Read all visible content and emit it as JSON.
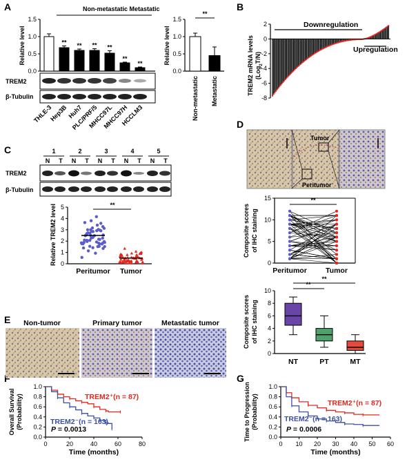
{
  "panel_labels": {
    "A": "A",
    "B": "B",
    "C": "C",
    "D": "D",
    "E": "E",
    "F": "F",
    "G": "G"
  },
  "panelA": {
    "group_label": "Non-metastatic Metastatic",
    "blot_labels": [
      "TREM2",
      "β-Tubulin"
    ],
    "sig": "**",
    "chart_data": [
      {
        "type": "bar",
        "ylabel": "Relative level",
        "ylim": [
          0,
          1.5
        ],
        "yticks": [
          "0.0",
          "0.5",
          "1.0",
          "1.5"
        ],
        "categories": [
          "THLE-3",
          "Hep3B",
          "Huh7",
          "PLC/PRF/5",
          "MHCC97L",
          "MHCC97H",
          "HCCLM3"
        ],
        "values": [
          1.0,
          0.68,
          0.6,
          0.6,
          0.52,
          0.24,
          0.1
        ],
        "errors": [
          0.08,
          0.05,
          0.04,
          0.05,
          0.07,
          0.02,
          0.02
        ],
        "significance": [
          "",
          "**",
          "**",
          "**",
          "**",
          "**",
          "**"
        ]
      },
      {
        "type": "bar",
        "ylabel": "Relative level",
        "ylim": [
          0,
          1.5
        ],
        "yticks": [
          "0.0",
          "0.5",
          "1.0",
          "1.5"
        ],
        "categories": [
          "Non-metastatic",
          "Metastatic"
        ],
        "values": [
          1.0,
          0.45
        ],
        "errors": [
          0.1,
          0.25
        ],
        "significance": "**"
      }
    ]
  },
  "panelB": {
    "ylabel_line1": "TREM2 mRNA levels",
    "ylabel_line2": "(Log",
    "ylabel_sub": "2",
    "ylabel_end": "T/N)",
    "annotation_down": "Downregulation",
    "annotation_up": "Upregulation",
    "chart_data": {
      "type": "bar",
      "ylim": [
        -8,
        2
      ],
      "yticks": [
        "-8",
        "-6",
        "-4",
        "-2",
        "0",
        "2"
      ],
      "n_samples": 100,
      "min_value": -7.8,
      "max_value": 1.8,
      "n_downregulated": 78,
      "n_upregulated": 22
    }
  },
  "panelC": {
    "lanes": [
      "1",
      "2",
      "3",
      "4",
      "5"
    ],
    "lane_letters": [
      "N",
      "T",
      "N",
      "T",
      "N",
      "T",
      "N",
      "T",
      "N",
      "T"
    ],
    "blot_labels": [
      "TREM2",
      "β-Tubulin"
    ],
    "sig": "**",
    "chart_data": {
      "type": "scatter",
      "ylabel": "Relative TREM2 level",
      "ylim": [
        0,
        5
      ],
      "yticks": [
        "0",
        "1",
        "2",
        "3",
        "4",
        "5"
      ],
      "categories": [
        "Peritumor",
        "Tumor"
      ],
      "means": [
        2.5,
        0.5
      ]
    }
  },
  "panelD": {
    "image_labels": [
      "Tumor",
      "Peritumor"
    ],
    "sig": "**",
    "chart_data": [
      {
        "type": "line",
        "ylabel": "Composite scores of IHC staining",
        "ylim": [
          0,
          15
        ],
        "yticks": [
          "0",
          "5",
          "10",
          "15"
        ],
        "categories": [
          "Peritumor",
          "Tumor"
        ]
      },
      {
        "type": "box",
        "ylabel": "Composite scores of IHC staining",
        "ylim": [
          0,
          10
        ],
        "yticks": [
          "0",
          "2",
          "4",
          "6",
          "8",
          "10"
        ],
        "categories": [
          "NT",
          "PT",
          "MT"
        ],
        "boxes": [
          {
            "min": 3,
            "q1": 4.5,
            "median": 6,
            "q3": 8,
            "max": 9
          },
          {
            "min": 1,
            "q1": 2,
            "median": 3,
            "q3": 4,
            "max": 6
          },
          {
            "min": 0,
            "q1": 0.5,
            "median": 1,
            "q3": 2,
            "max": 3
          }
        ],
        "significance": [
          "**",
          "**"
        ]
      }
    ]
  },
  "panelE": {
    "labels": [
      "Non-tumor",
      "Primary tumor",
      "Metastatic tumor"
    ]
  },
  "panelF": {
    "chart_data": {
      "type": "line",
      "ylabel": "Overall Survival (Probability)",
      "xlabel": "Time (months)",
      "xlim": [
        0,
        80
      ],
      "ylim": [
        0,
        1
      ],
      "xticks": [
        "0",
        "20",
        "40",
        "60",
        "80"
      ],
      "yticks": [
        "0.0",
        "0.2",
        "0.4",
        "0.6",
        "0.8",
        "1.0"
      ],
      "series": [
        {
          "name": "TREM2⁺(n = 87)",
          "color": "#e8241c",
          "points": [
            [
              0,
              1
            ],
            [
              5,
              0.93
            ],
            [
              10,
              0.85
            ],
            [
              15,
              0.8
            ],
            [
              20,
              0.76
            ],
            [
              25,
              0.72
            ],
            [
              30,
              0.69
            ],
            [
              35,
              0.66
            ],
            [
              40,
              0.6
            ],
            [
              45,
              0.55
            ],
            [
              50,
              0.52
            ],
            [
              52,
              0.5
            ],
            [
              62,
              0.5
            ]
          ]
        },
        {
          "name": "TREM2⁻(n = 163)",
          "color": "#3b4fa2",
          "points": [
            [
              0,
              1
            ],
            [
              5,
              0.9
            ],
            [
              10,
              0.78
            ],
            [
              15,
              0.68
            ],
            [
              20,
              0.6
            ],
            [
              25,
              0.54
            ],
            [
              30,
              0.47
            ],
            [
              35,
              0.42
            ],
            [
              40,
              0.38
            ],
            [
              45,
              0.33
            ],
            [
              50,
              0.28
            ],
            [
              52,
              0.27
            ],
            [
              55,
              0.16
            ]
          ]
        }
      ],
      "pvalue_label": "P",
      "pvalue": "= 0.0013"
    }
  },
  "panelG": {
    "chart_data": {
      "type": "line",
      "ylabel": "Time to Progression (Probability)",
      "xlabel": "Time (months)",
      "xlim": [
        0,
        60
      ],
      "ylim": [
        0,
        1
      ],
      "xticks": [
        "0",
        "10",
        "20",
        "30",
        "40",
        "50",
        "60"
      ],
      "yticks": [
        "0.0",
        "0.2",
        "0.4",
        "0.6",
        "0.8",
        "1.0"
      ],
      "series": [
        {
          "name": "TREM2⁺(n = 87)",
          "color": "#e8241c",
          "points": [
            [
              0,
              1
            ],
            [
              3,
              0.88
            ],
            [
              6,
              0.78
            ],
            [
              10,
              0.7
            ],
            [
              15,
              0.63
            ],
            [
              20,
              0.58
            ],
            [
              25,
              0.53
            ],
            [
              30,
              0.5
            ],
            [
              35,
              0.48
            ],
            [
              40,
              0.45
            ],
            [
              45,
              0.44
            ],
            [
              54,
              0.44
            ]
          ]
        },
        {
          "name": "TREM2⁻(n = 163)",
          "color": "#3b4fa2",
          "points": [
            [
              0,
              1
            ],
            [
              3,
              0.8
            ],
            [
              6,
              0.62
            ],
            [
              10,
              0.5
            ],
            [
              15,
              0.42
            ],
            [
              20,
              0.36
            ],
            [
              25,
              0.32
            ],
            [
              30,
              0.29
            ],
            [
              35,
              0.26
            ],
            [
              40,
              0.25
            ],
            [
              45,
              0.23
            ],
            [
              54,
              0.23
            ]
          ]
        }
      ],
      "pvalue_label": "P",
      "pvalue": "= 0.0006"
    }
  }
}
